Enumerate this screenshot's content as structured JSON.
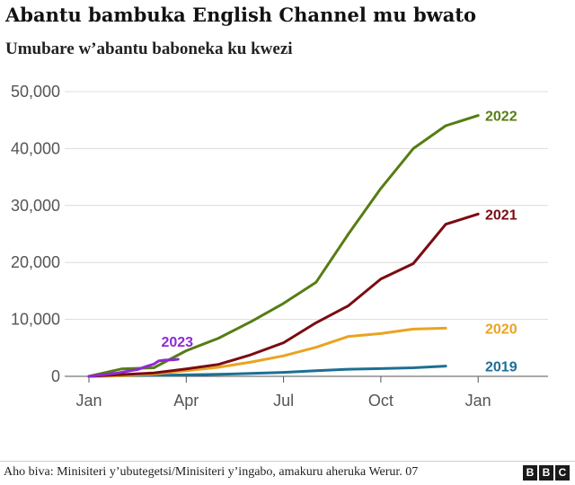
{
  "chart_data": {
    "type": "line",
    "title": "Abantu bambuka English Channel mu bwato",
    "subtitle": "Umubare w’abantu baboneka ku kwezi",
    "x_ticks": [
      "Jan",
      "Apr",
      "Jul",
      "Oct",
      "Jan"
    ],
    "y_ticks": [
      "0",
      "10,000",
      "20,000",
      "30,000",
      "40,000",
      "50,000"
    ],
    "ylim": [
      0,
      50000
    ],
    "grid": "horizontal",
    "series": [
      {
        "name": "2019",
        "color": "#1d6f94",
        "points": [
          [
            0,
            0
          ],
          [
            1,
            100
          ],
          [
            2,
            150
          ],
          [
            3,
            250
          ],
          [
            4,
            350
          ],
          [
            5,
            500
          ],
          [
            6,
            700
          ],
          [
            7,
            1000
          ],
          [
            8,
            1250
          ],
          [
            9,
            1350
          ],
          [
            10,
            1500
          ],
          [
            11,
            1800
          ]
        ]
      },
      {
        "name": "2020",
        "color": "#eaa321",
        "points": [
          [
            0,
            0
          ],
          [
            1,
            100
          ],
          [
            2,
            400
          ],
          [
            3,
            1000
          ],
          [
            4,
            1600
          ],
          [
            5,
            2500
          ],
          [
            6,
            3600
          ],
          [
            7,
            5100
          ],
          [
            8,
            7000
          ],
          [
            9,
            7500
          ],
          [
            10,
            8300
          ],
          [
            11,
            8450
          ]
        ]
      },
      {
        "name": "2021",
        "color": "#7a0b12",
        "points": [
          [
            0,
            0
          ],
          [
            1,
            300
          ],
          [
            2,
            600
          ],
          [
            3,
            1300
          ],
          [
            4,
            2100
          ],
          [
            5,
            3800
          ],
          [
            6,
            5900
          ],
          [
            7,
            9400
          ],
          [
            8,
            12400
          ],
          [
            9,
            17100
          ],
          [
            10,
            19800
          ],
          [
            11,
            26700
          ],
          [
            12,
            28500
          ]
        ]
      },
      {
        "name": "2022",
        "color": "#567d12",
        "points": [
          [
            0,
            0
          ],
          [
            1,
            1300
          ],
          [
            2,
            1500
          ],
          [
            3,
            4500
          ],
          [
            4,
            6700
          ],
          [
            5,
            9600
          ],
          [
            6,
            12800
          ],
          [
            7,
            16500
          ],
          [
            8,
            25000
          ],
          [
            9,
            33000
          ],
          [
            10,
            40000
          ],
          [
            11,
            44000
          ],
          [
            12,
            45800
          ]
        ]
      },
      {
        "name": "2023",
        "color": "#8f29d4",
        "points": [
          [
            0,
            0
          ],
          [
            0.9,
            600
          ],
          [
            1.3,
            1000
          ],
          [
            1.5,
            1200
          ],
          [
            1.75,
            1700
          ],
          [
            2.0,
            2150
          ],
          [
            2.15,
            2700
          ],
          [
            2.35,
            2850
          ],
          [
            2.6,
            2900
          ],
          [
            2.75,
            3000
          ]
        ]
      }
    ]
  },
  "footer": {
    "source": "Aho biva: Minisiteri y’ubutegetsi/Minisiteri y’ingabo, amakuru aheruka Werur. 07",
    "logo_letters": [
      "B",
      "B",
      "C"
    ]
  }
}
